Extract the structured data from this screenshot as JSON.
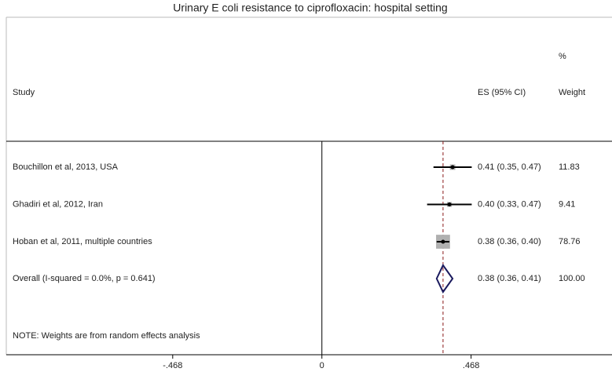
{
  "chart_data": {
    "type": "forest",
    "title": "Urinary E coli resistance to ciprofloxacin: hospital setting",
    "headers": {
      "study": "Study",
      "es": "ES (95% CI)",
      "weight_top": "%",
      "weight": "Weight"
    },
    "studies": [
      {
        "name": "Bouchillon et al, 2013, USA",
        "es": 0.41,
        "lo": 0.35,
        "hi": 0.47,
        "es_ci": "0.41 (0.35, 0.47)",
        "weight": 11.83
      },
      {
        "name": "Ghadiri et al, 2012, Iran",
        "es": 0.4,
        "lo": 0.33,
        "hi": 0.47,
        "es_ci": "0.40 (0.33, 0.47)",
        "weight": 9.41
      },
      {
        "name": "Hoban et al, 2011, multiple countries",
        "es": 0.38,
        "lo": 0.36,
        "hi": 0.4,
        "es_ci": "0.38 (0.36, 0.40)",
        "weight": 78.76
      }
    ],
    "overall": {
      "name": "Overall  (I-squared = 0.0%, p = 0.641)",
      "es": 0.38,
      "lo": 0.36,
      "hi": 0.41,
      "es_ci": "0.38 (0.36, 0.41)",
      "weight": {
        "value": 100,
        "label": "100.00"
      }
    },
    "note": "NOTE: Weights are from random effects analysis",
    "xlim": [
      -0.99,
      0.91
    ],
    "xticks": [
      {
        "value": -0.468,
        "label": "-.468"
      },
      0,
      {
        "value": 0.468,
        "label": ".468"
      }
    ]
  }
}
